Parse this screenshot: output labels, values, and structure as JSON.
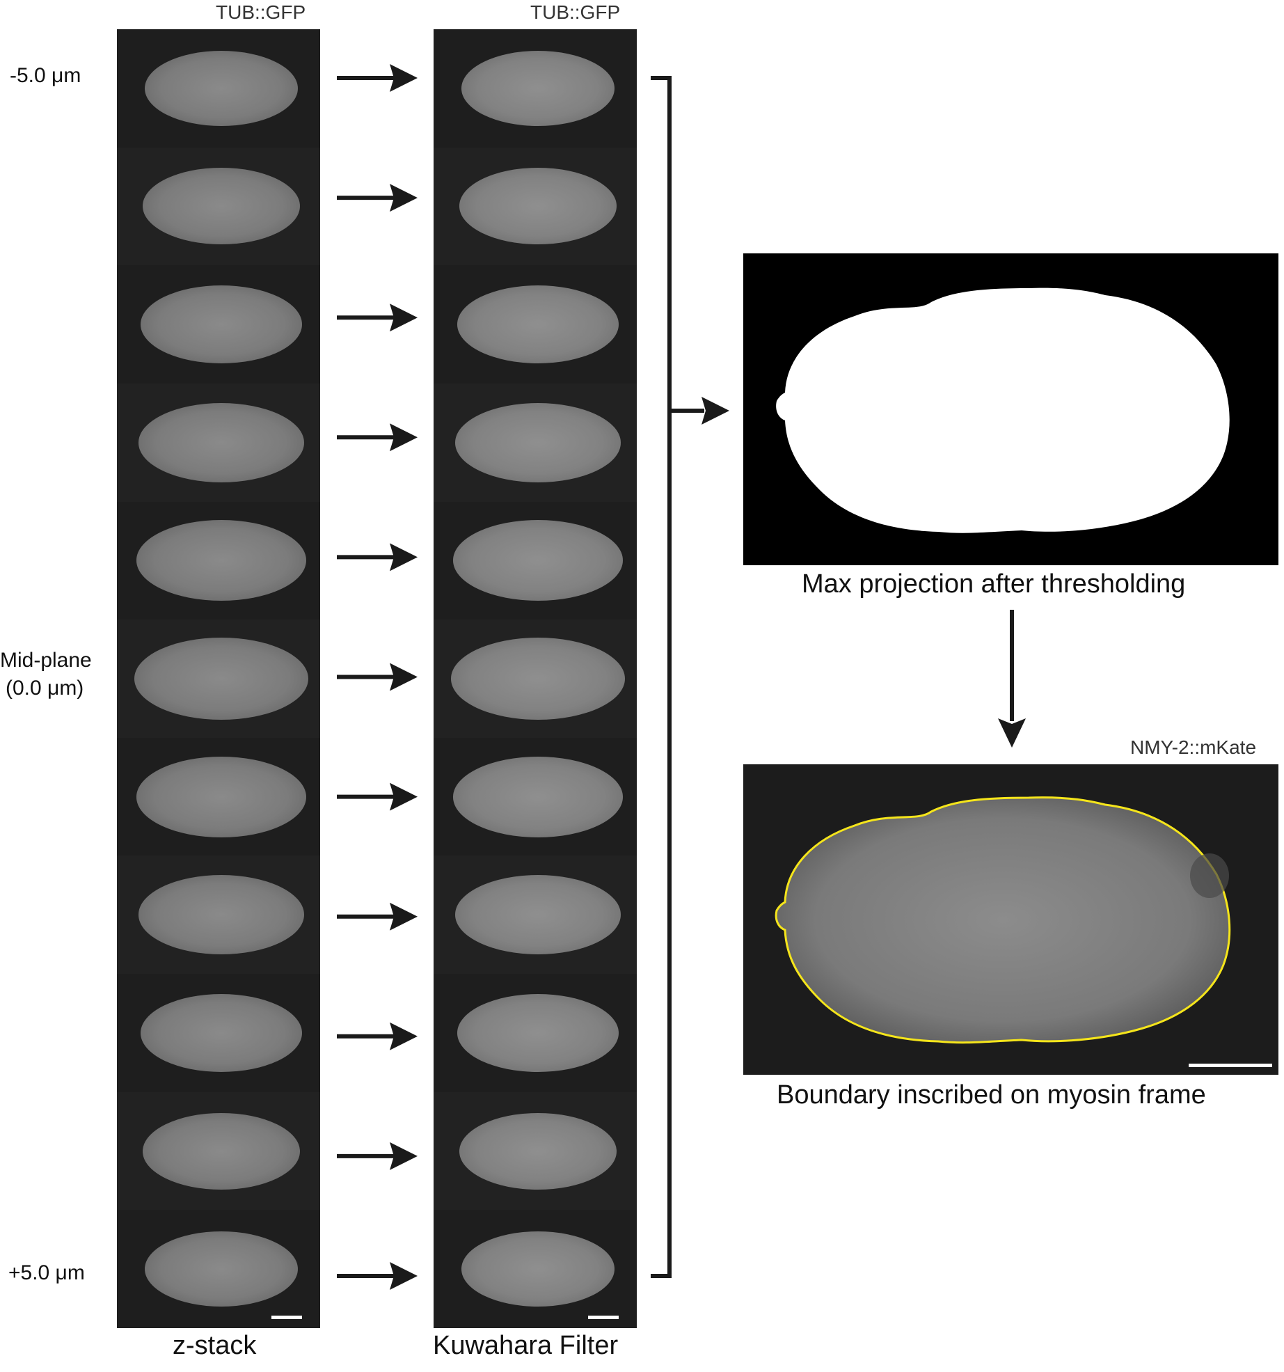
{
  "columns": {
    "left": {
      "header": "TUB::GFP",
      "caption": "z-stack"
    },
    "middle": {
      "header": "TUB::GFP",
      "caption": "Kuwahara Filter"
    }
  },
  "z_labels": {
    "top": "-5.0 μm",
    "mid_line1": "Mid-plane",
    "mid_line2": "(0.0 μm)",
    "bottom": "+5.0 μm"
  },
  "slices": 11,
  "panels": {
    "threshold": {
      "caption": "Max projection after thresholding"
    },
    "boundary": {
      "header": "NMY-2::mKate",
      "caption": "Boundary inscribed on myosin frame",
      "outline_color": "#f5e51b"
    }
  },
  "colors": {
    "arrow": "#1a1a1a",
    "background": "#ffffff",
    "mask": "#ffffff",
    "mask_bg": "#000000"
  }
}
